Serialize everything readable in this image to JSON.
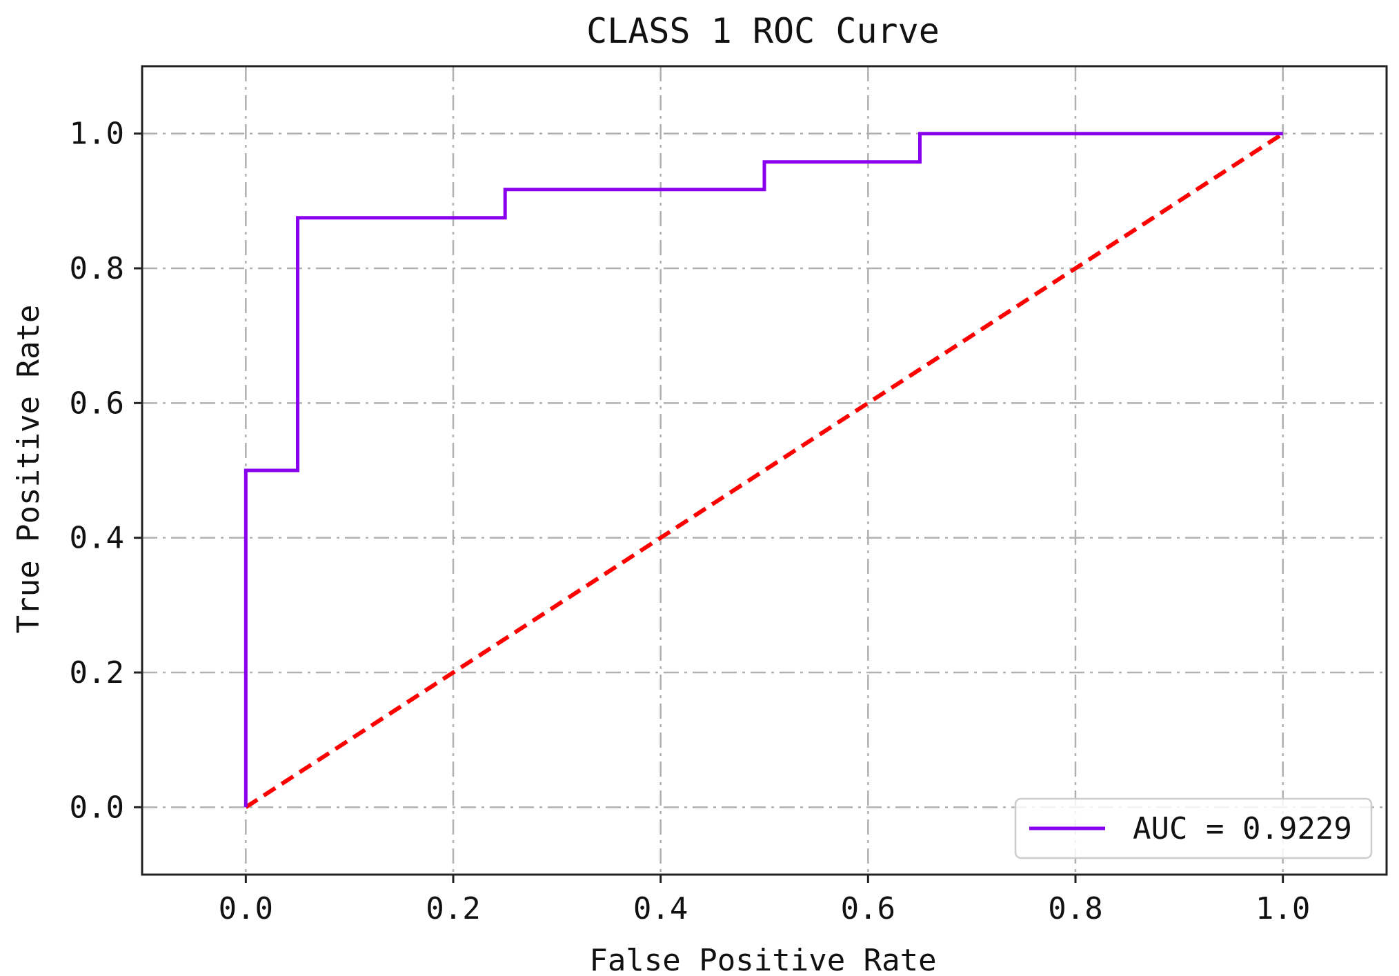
{
  "chart_data": {
    "type": "line",
    "title": "CLASS 1 ROC Curve",
    "xlabel": "False Positive Rate",
    "ylabel": "True Positive Rate",
    "xlim": [
      -0.1,
      1.1
    ],
    "ylim": [
      -0.1,
      1.1
    ],
    "xticks": [
      "0.0",
      "0.2",
      "0.4",
      "0.6",
      "0.8",
      "1.0"
    ],
    "yticks": [
      "0.0",
      "0.2",
      "0.4",
      "0.6",
      "0.8",
      "1.0"
    ],
    "grid": true,
    "legend_position": "lower right",
    "series": [
      {
        "name": "AUC = 0.9229",
        "color": "#8800ee",
        "style": "solid",
        "x": [
          0.0,
          0.0,
          0.05,
          0.05,
          0.25,
          0.25,
          0.5,
          0.5,
          0.65,
          0.65,
          1.0
        ],
        "y": [
          0.0,
          0.5,
          0.5,
          0.875,
          0.875,
          0.917,
          0.917,
          0.958,
          0.958,
          1.0,
          1.0
        ]
      },
      {
        "color": "#ff0000",
        "style": "dashed",
        "x": [
          0.0,
          1.0
        ],
        "y": [
          0.0,
          1.0
        ]
      }
    ]
  }
}
